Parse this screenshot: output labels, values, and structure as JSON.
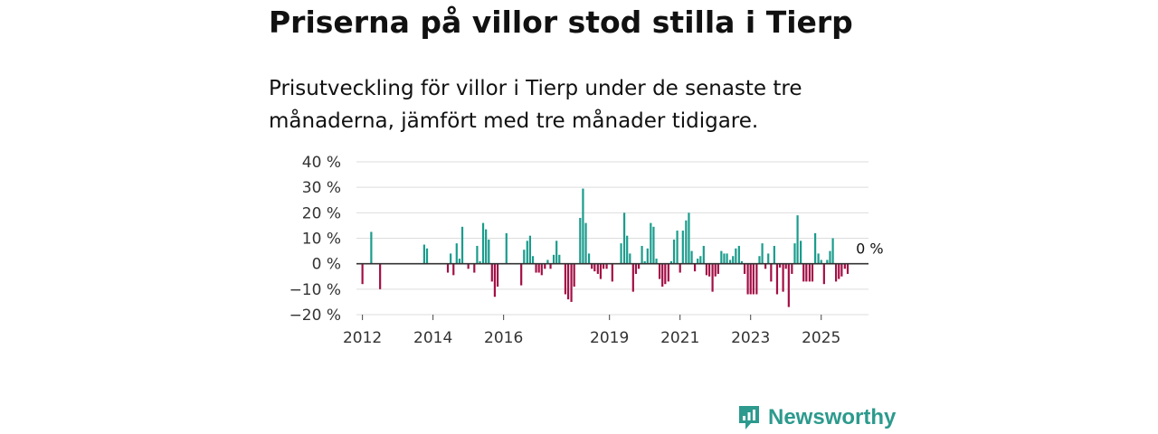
{
  "header": {
    "title": "Priserna på villor stod stilla i Tierp",
    "subtitle": "Prisutveckling för villor i Tierp under de senaste tre månaderna, jämfört med tre månader tidigare."
  },
  "brand": {
    "name": "Newsworthy",
    "icon": "newsworthy-logo-icon",
    "color": "#2c9a8d"
  },
  "colors": {
    "positive": "#1a9c8c",
    "negative": "#a30f45",
    "grid": "#dddddd",
    "zero_line": "#333333"
  },
  "chart_data": {
    "type": "bar",
    "title": "Priserna på villor stod stilla i Tierp",
    "xlabel": "",
    "ylabel": "",
    "ylim": [
      -20,
      40
    ],
    "yticks": [
      40,
      30,
      20,
      10,
      0,
      -10,
      -20
    ],
    "ytick_labels": [
      "40 %",
      "30 %",
      "20 %",
      "10 %",
      "0 %",
      "−10 %",
      "−20 %"
    ],
    "xlim": [
      2011.83,
      2026.34
    ],
    "xticks": [
      2012,
      2014,
      2016,
      2019,
      2021,
      2023,
      2025
    ],
    "xtick_labels": [
      "2012",
      "2014",
      "2016",
      "2019",
      "2021",
      "2023",
      "2025"
    ],
    "end_label": "0 %",
    "grid": true,
    "series": [
      {
        "name": "Prisutveckling",
        "points": [
          {
            "x": 2012.0,
            "y": -8
          },
          {
            "x": 2012.25,
            "y": 12.5
          },
          {
            "x": 2012.5,
            "y": -10
          },
          {
            "x": 2013.75,
            "y": 7.5
          },
          {
            "x": 2013.83,
            "y": 6
          },
          {
            "x": 2014.42,
            "y": -3.5
          },
          {
            "x": 2014.5,
            "y": 4
          },
          {
            "x": 2014.58,
            "y": -4.5
          },
          {
            "x": 2014.67,
            "y": 8
          },
          {
            "x": 2014.75,
            "y": 2
          },
          {
            "x": 2014.83,
            "y": 14.5
          },
          {
            "x": 2015.0,
            "y": -2
          },
          {
            "x": 2015.17,
            "y": -3.5
          },
          {
            "x": 2015.25,
            "y": 7
          },
          {
            "x": 2015.33,
            "y": 1
          },
          {
            "x": 2015.42,
            "y": 16
          },
          {
            "x": 2015.5,
            "y": 13.5
          },
          {
            "x": 2015.58,
            "y": 9.5
          },
          {
            "x": 2015.67,
            "y": -7
          },
          {
            "x": 2015.75,
            "y": -13
          },
          {
            "x": 2015.83,
            "y": -9
          },
          {
            "x": 2016.08,
            "y": 12
          },
          {
            "x": 2016.5,
            "y": -8.5
          },
          {
            "x": 2016.58,
            "y": 5.5
          },
          {
            "x": 2016.67,
            "y": 9
          },
          {
            "x": 2016.75,
            "y": 11
          },
          {
            "x": 2016.83,
            "y": 3
          },
          {
            "x": 2016.92,
            "y": -3.5
          },
          {
            "x": 2017.0,
            "y": -3.5
          },
          {
            "x": 2017.08,
            "y": -4.5
          },
          {
            "x": 2017.17,
            "y": -2
          },
          {
            "x": 2017.25,
            "y": 1.5
          },
          {
            "x": 2017.33,
            "y": -2
          },
          {
            "x": 2017.42,
            "y": 3.5
          },
          {
            "x": 2017.5,
            "y": 9
          },
          {
            "x": 2017.58,
            "y": 3.5
          },
          {
            "x": 2017.75,
            "y": -12
          },
          {
            "x": 2017.83,
            "y": -14
          },
          {
            "x": 2017.92,
            "y": -15
          },
          {
            "x": 2018.0,
            "y": -9
          },
          {
            "x": 2018.17,
            "y": 18
          },
          {
            "x": 2018.25,
            "y": 29.5
          },
          {
            "x": 2018.33,
            "y": 16
          },
          {
            "x": 2018.42,
            "y": 4
          },
          {
            "x": 2018.5,
            "y": -2
          },
          {
            "x": 2018.58,
            "y": -3
          },
          {
            "x": 2018.67,
            "y": -4
          },
          {
            "x": 2018.75,
            "y": -6
          },
          {
            "x": 2018.83,
            "y": -2
          },
          {
            "x": 2018.92,
            "y": -2
          },
          {
            "x": 2019.08,
            "y": -7
          },
          {
            "x": 2019.33,
            "y": 8
          },
          {
            "x": 2019.42,
            "y": 20
          },
          {
            "x": 2019.5,
            "y": 11
          },
          {
            "x": 2019.58,
            "y": 4
          },
          {
            "x": 2019.67,
            "y": -11
          },
          {
            "x": 2019.75,
            "y": -4
          },
          {
            "x": 2019.83,
            "y": -2
          },
          {
            "x": 2019.92,
            "y": 7
          },
          {
            "x": 2020.0,
            "y": 1
          },
          {
            "x": 2020.08,
            "y": 6
          },
          {
            "x": 2020.17,
            "y": 16
          },
          {
            "x": 2020.25,
            "y": 14.5
          },
          {
            "x": 2020.33,
            "y": 2
          },
          {
            "x": 2020.42,
            "y": -6
          },
          {
            "x": 2020.5,
            "y": -9
          },
          {
            "x": 2020.58,
            "y": -8
          },
          {
            "x": 2020.67,
            "y": -7
          },
          {
            "x": 2020.75,
            "y": 1
          },
          {
            "x": 2020.83,
            "y": 9.5
          },
          {
            "x": 2020.92,
            "y": 13
          },
          {
            "x": 2021.0,
            "y": -3.5
          },
          {
            "x": 2021.08,
            "y": 13
          },
          {
            "x": 2021.17,
            "y": 17
          },
          {
            "x": 2021.25,
            "y": 20
          },
          {
            "x": 2021.33,
            "y": 5
          },
          {
            "x": 2021.42,
            "y": -3
          },
          {
            "x": 2021.5,
            "y": 2
          },
          {
            "x": 2021.58,
            "y": 3
          },
          {
            "x": 2021.67,
            "y": 7
          },
          {
            "x": 2021.75,
            "y": -4.5
          },
          {
            "x": 2021.83,
            "y": -5
          },
          {
            "x": 2021.92,
            "y": -11
          },
          {
            "x": 2022.0,
            "y": -5
          },
          {
            "x": 2022.08,
            "y": -4
          },
          {
            "x": 2022.17,
            "y": 5
          },
          {
            "x": 2022.25,
            "y": 4
          },
          {
            "x": 2022.33,
            "y": 4
          },
          {
            "x": 2022.42,
            "y": 1.5
          },
          {
            "x": 2022.5,
            "y": 3
          },
          {
            "x": 2022.58,
            "y": 6
          },
          {
            "x": 2022.67,
            "y": 7
          },
          {
            "x": 2022.75,
            "y": 1
          },
          {
            "x": 2022.83,
            "y": -4
          },
          {
            "x": 2022.92,
            "y": -12
          },
          {
            "x": 2023.0,
            "y": -12
          },
          {
            "x": 2023.08,
            "y": -12
          },
          {
            "x": 2023.17,
            "y": -12
          },
          {
            "x": 2023.25,
            "y": 3
          },
          {
            "x": 2023.33,
            "y": 8
          },
          {
            "x": 2023.42,
            "y": -2
          },
          {
            "x": 2023.5,
            "y": 4
          },
          {
            "x": 2023.58,
            "y": -7
          },
          {
            "x": 2023.67,
            "y": 7
          },
          {
            "x": 2023.75,
            "y": -12
          },
          {
            "x": 2023.83,
            "y": -1.5
          },
          {
            "x": 2023.92,
            "y": -11
          },
          {
            "x": 2024.0,
            "y": -2
          },
          {
            "x": 2024.08,
            "y": -17
          },
          {
            "x": 2024.17,
            "y": -4
          },
          {
            "x": 2024.25,
            "y": 8
          },
          {
            "x": 2024.33,
            "y": 19
          },
          {
            "x": 2024.42,
            "y": 9
          },
          {
            "x": 2024.5,
            "y": -7
          },
          {
            "x": 2024.58,
            "y": -7
          },
          {
            "x": 2024.67,
            "y": -7
          },
          {
            "x": 2024.75,
            "y": -7
          },
          {
            "x": 2024.83,
            "y": 12
          },
          {
            "x": 2024.92,
            "y": 4
          },
          {
            "x": 2025.0,
            "y": 1.5
          },
          {
            "x": 2025.08,
            "y": -8
          },
          {
            "x": 2025.17,
            "y": 1.5
          },
          {
            "x": 2025.25,
            "y": 5
          },
          {
            "x": 2025.33,
            "y": 10
          },
          {
            "x": 2025.42,
            "y": -7
          },
          {
            "x": 2025.5,
            "y": -6
          },
          {
            "x": 2025.58,
            "y": -5
          },
          {
            "x": 2025.67,
            "y": -2
          },
          {
            "x": 2025.75,
            "y": -4
          },
          {
            "x": 2025.83,
            "y": 0
          }
        ]
      }
    ]
  }
}
